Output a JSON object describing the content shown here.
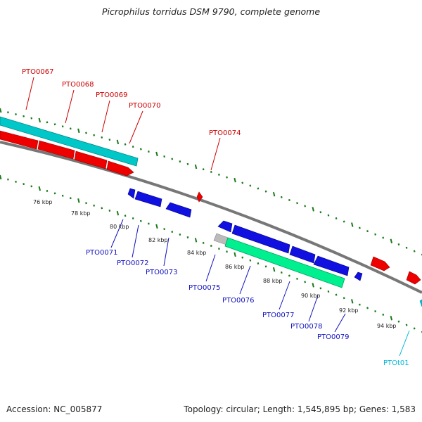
{
  "title": "Picrophilus torridus DSM 9790, complete genome",
  "footer": {
    "accession": "Accession: NC_005877",
    "summary": "Topology: circular; Length: 1,545,895 bp; Genes: 1,583"
  },
  "colors": {
    "forward_gene": "#ee0000",
    "reverse_gene": "#1010e0",
    "forward_rna": "#00c8c8",
    "reverse_rna": "#00f090",
    "trna_label": "#00b8d8",
    "backbone": "#808080",
    "tick": "#1a7a1a"
  },
  "kbp_labels": [
    "76 kbp",
    "78 kbp",
    "80 kbp",
    "82 kbp",
    "84 kbp",
    "86 kbp",
    "88 kbp",
    "90 kbp",
    "92 kbp",
    "94 kbp"
  ],
  "forward_genes": [
    "PTO0067",
    "PTO0068",
    "PTO0069",
    "PTO0070",
    "PTO0074"
  ],
  "reverse_genes": [
    "PTO0071",
    "PTO0072",
    "PTO0073",
    "PTO0075",
    "PTO0076",
    "PTO0077",
    "PTO0078",
    "PTO0079"
  ],
  "rna_genes": [
    "PTOt01"
  ]
}
